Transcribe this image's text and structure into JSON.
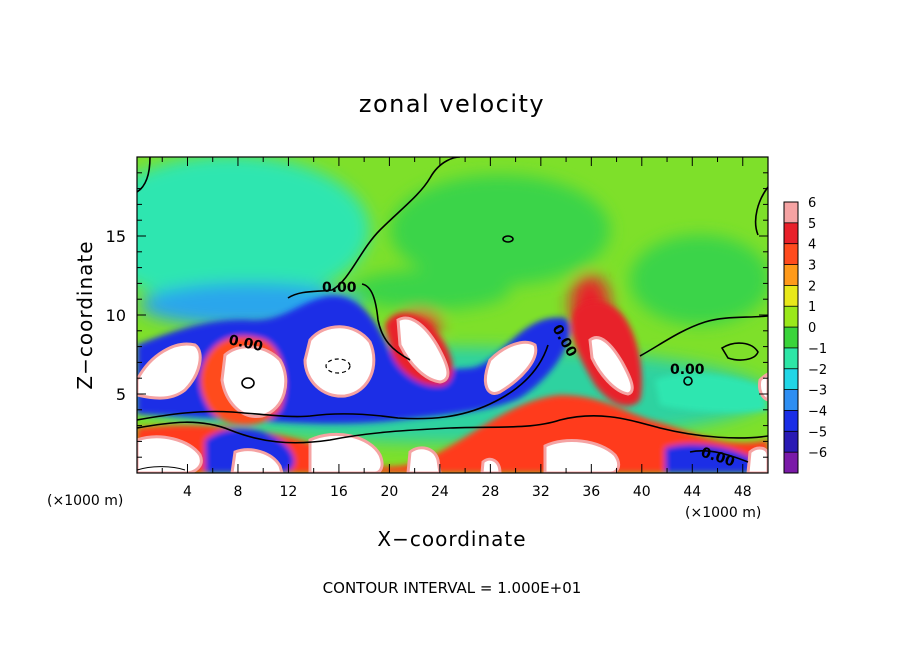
{
  "chart_data": {
    "type": "heatmap",
    "title": "zonal velocity",
    "xlabel": "X−coordinate",
    "ylabel": "Z−coordinate",
    "x_unit_label": "(×1000 m)",
    "z_unit_label": "(×1000 m)",
    "xlim": [
      0,
      50
    ],
    "ylim": [
      0,
      20
    ],
    "x_ticks": [
      4,
      8,
      12,
      16,
      20,
      24,
      28,
      32,
      36,
      40,
      44,
      48
    ],
    "y_ticks": [
      5,
      10,
      15
    ],
    "colorbar": {
      "levels": [
        6,
        5,
        4,
        3,
        2,
        1,
        0,
        -1,
        -2,
        -3,
        -4,
        -5,
        -6
      ],
      "labels": [
        "6",
        "5",
        "4",
        "3",
        "2",
        "1",
        "0",
        "−1",
        "−2",
        "−3",
        "−4",
        "−5",
        "−6"
      ],
      "colors": [
        "#f5a3a3",
        "#e8202a",
        "#ff4b1e",
        "#ff9a1a",
        "#e8e81a",
        "#9ae81a",
        "#3ad43a",
        "#2ee6a6",
        "#21d6e6",
        "#2e8ef2",
        "#1a2ee6",
        "#2a1ab4",
        "#7a1aa8"
      ]
    },
    "contour_labels": [
      "0.00",
      "0.00",
      "0.00",
      "0.00",
      "0.00"
    ],
    "contour_interval_text": "CONTOUR INTERVAL = 1.000E+01"
  }
}
